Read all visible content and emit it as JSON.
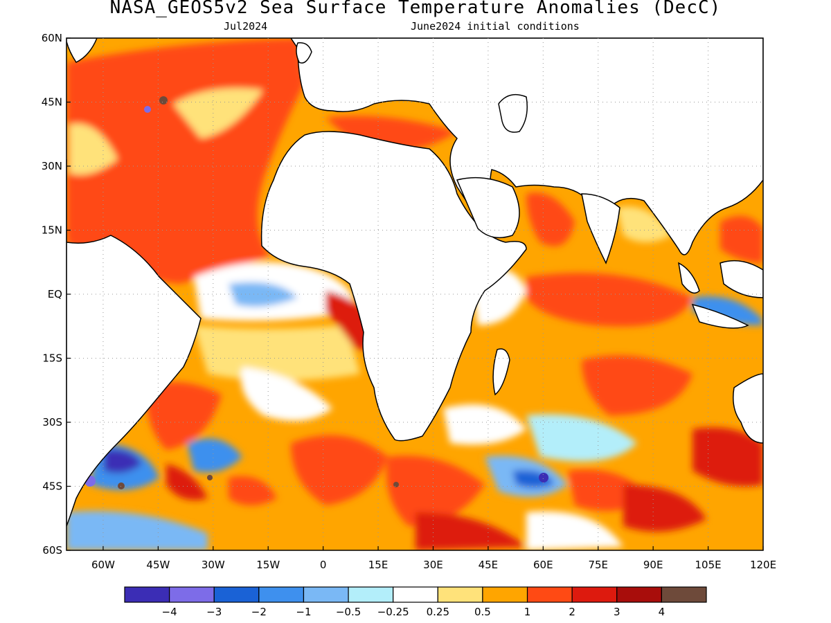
{
  "title": "NASA_GEOS5v2 Sea Surface Temperature Anomalies (DecC)",
  "valid_month": "Jul2024",
  "initial_conditions": "June2024 initial conditions",
  "map": {
    "lon_range": [
      -70,
      120
    ],
    "lat_range": [
      -60,
      60
    ],
    "gridlines": "dotted",
    "lat_labels": [
      "60N",
      "45N",
      "30N",
      "15N",
      "EQ",
      "15S",
      "30S",
      "45S",
      "60S"
    ],
    "lon_labels": [
      "60W",
      "45W",
      "30W",
      "15W",
      "0",
      "15E",
      "30E",
      "45E",
      "60E",
      "75E",
      "90E",
      "105E",
      "120E"
    ]
  },
  "colorbar": {
    "colors": [
      "#3b2db5",
      "#7d6ce8",
      "#1a62d6",
      "#3e90ee",
      "#7ab8f5",
      "#b3eefa",
      "#ffffff",
      "#ffe27a",
      "#ffa500",
      "#ff4a14",
      "#dd1a0e",
      "#a80d0b",
      "#6e4a3a"
    ],
    "labels": [
      "−4",
      "−3",
      "−2",
      "−1",
      "−0.5",
      "−0.25",
      "0.25",
      "0.5",
      "1",
      "2",
      "3",
      "4"
    ]
  }
}
